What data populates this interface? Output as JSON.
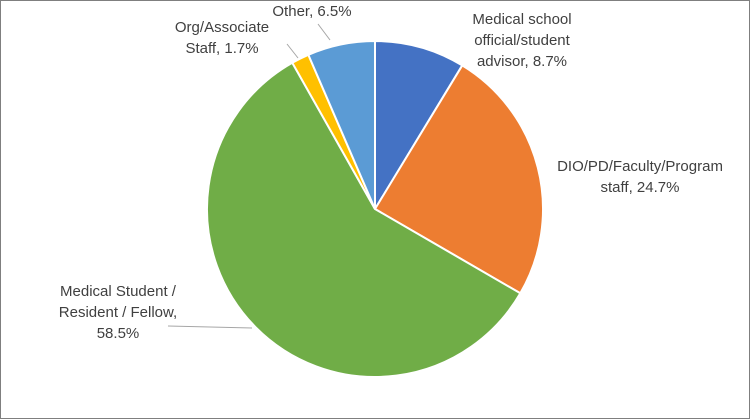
{
  "chart_data": {
    "type": "pie",
    "start_angle_deg": 0,
    "direction": "clockwise",
    "slices": [
      {
        "label_lines": [
          "Medical school",
          "official/student",
          "advisor, 8.7%"
        ],
        "value": 8.7,
        "color": "#4472c4"
      },
      {
        "label_lines": [
          "DIO/PD/Faculty/Program",
          "staff, 24.7%"
        ],
        "value": 24.7,
        "color": "#ed7d31"
      },
      {
        "label_lines": [
          "Medical Student  /",
          "Resident / Fellow,",
          "58.5%"
        ],
        "value": 58.5,
        "color": "#70ad47"
      },
      {
        "label_lines": [
          "Org/Associate",
          "Staff, 1.7%"
        ],
        "value": 1.7,
        "color": "#ffc000"
      },
      {
        "label_lines": [
          "Other, 6.5%"
        ],
        "value": 6.5,
        "color": "#5b9bd5"
      }
    ]
  }
}
